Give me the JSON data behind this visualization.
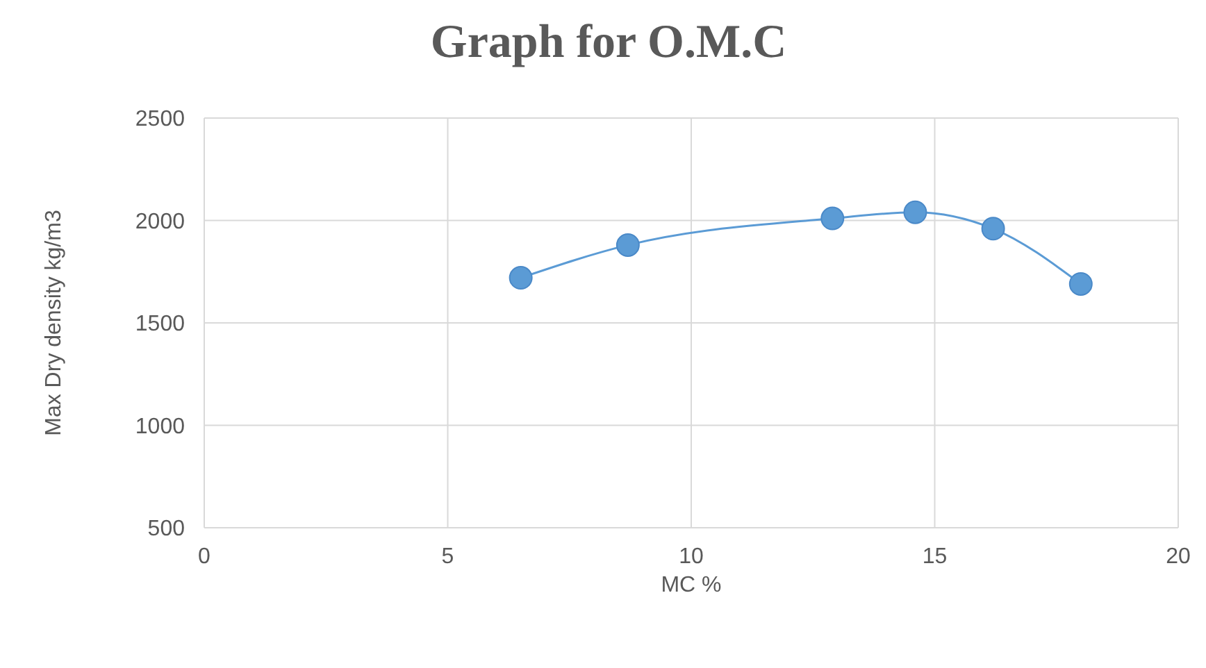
{
  "chart_data": {
    "type": "line",
    "title": "Graph for O.M.C",
    "xlabel": "MC %",
    "ylabel": "Max Dry density kg/m3",
    "x": [
      6.5,
      8.7,
      12.9,
      14.6,
      16.2,
      18
    ],
    "series": [
      {
        "color": "#5b9bd5",
        "values": [
          1720,
          1880,
          2010,
          2040,
          1960,
          1690
        ]
      }
    ],
    "xlim": [
      0,
      20
    ],
    "xticks": [
      0,
      5,
      10,
      15,
      20
    ],
    "ylim": [
      500,
      2500
    ],
    "yticks": [
      500,
      1000,
      1500,
      2000,
      2500
    ],
    "grid": true,
    "marker": "circle",
    "legend": false
  }
}
